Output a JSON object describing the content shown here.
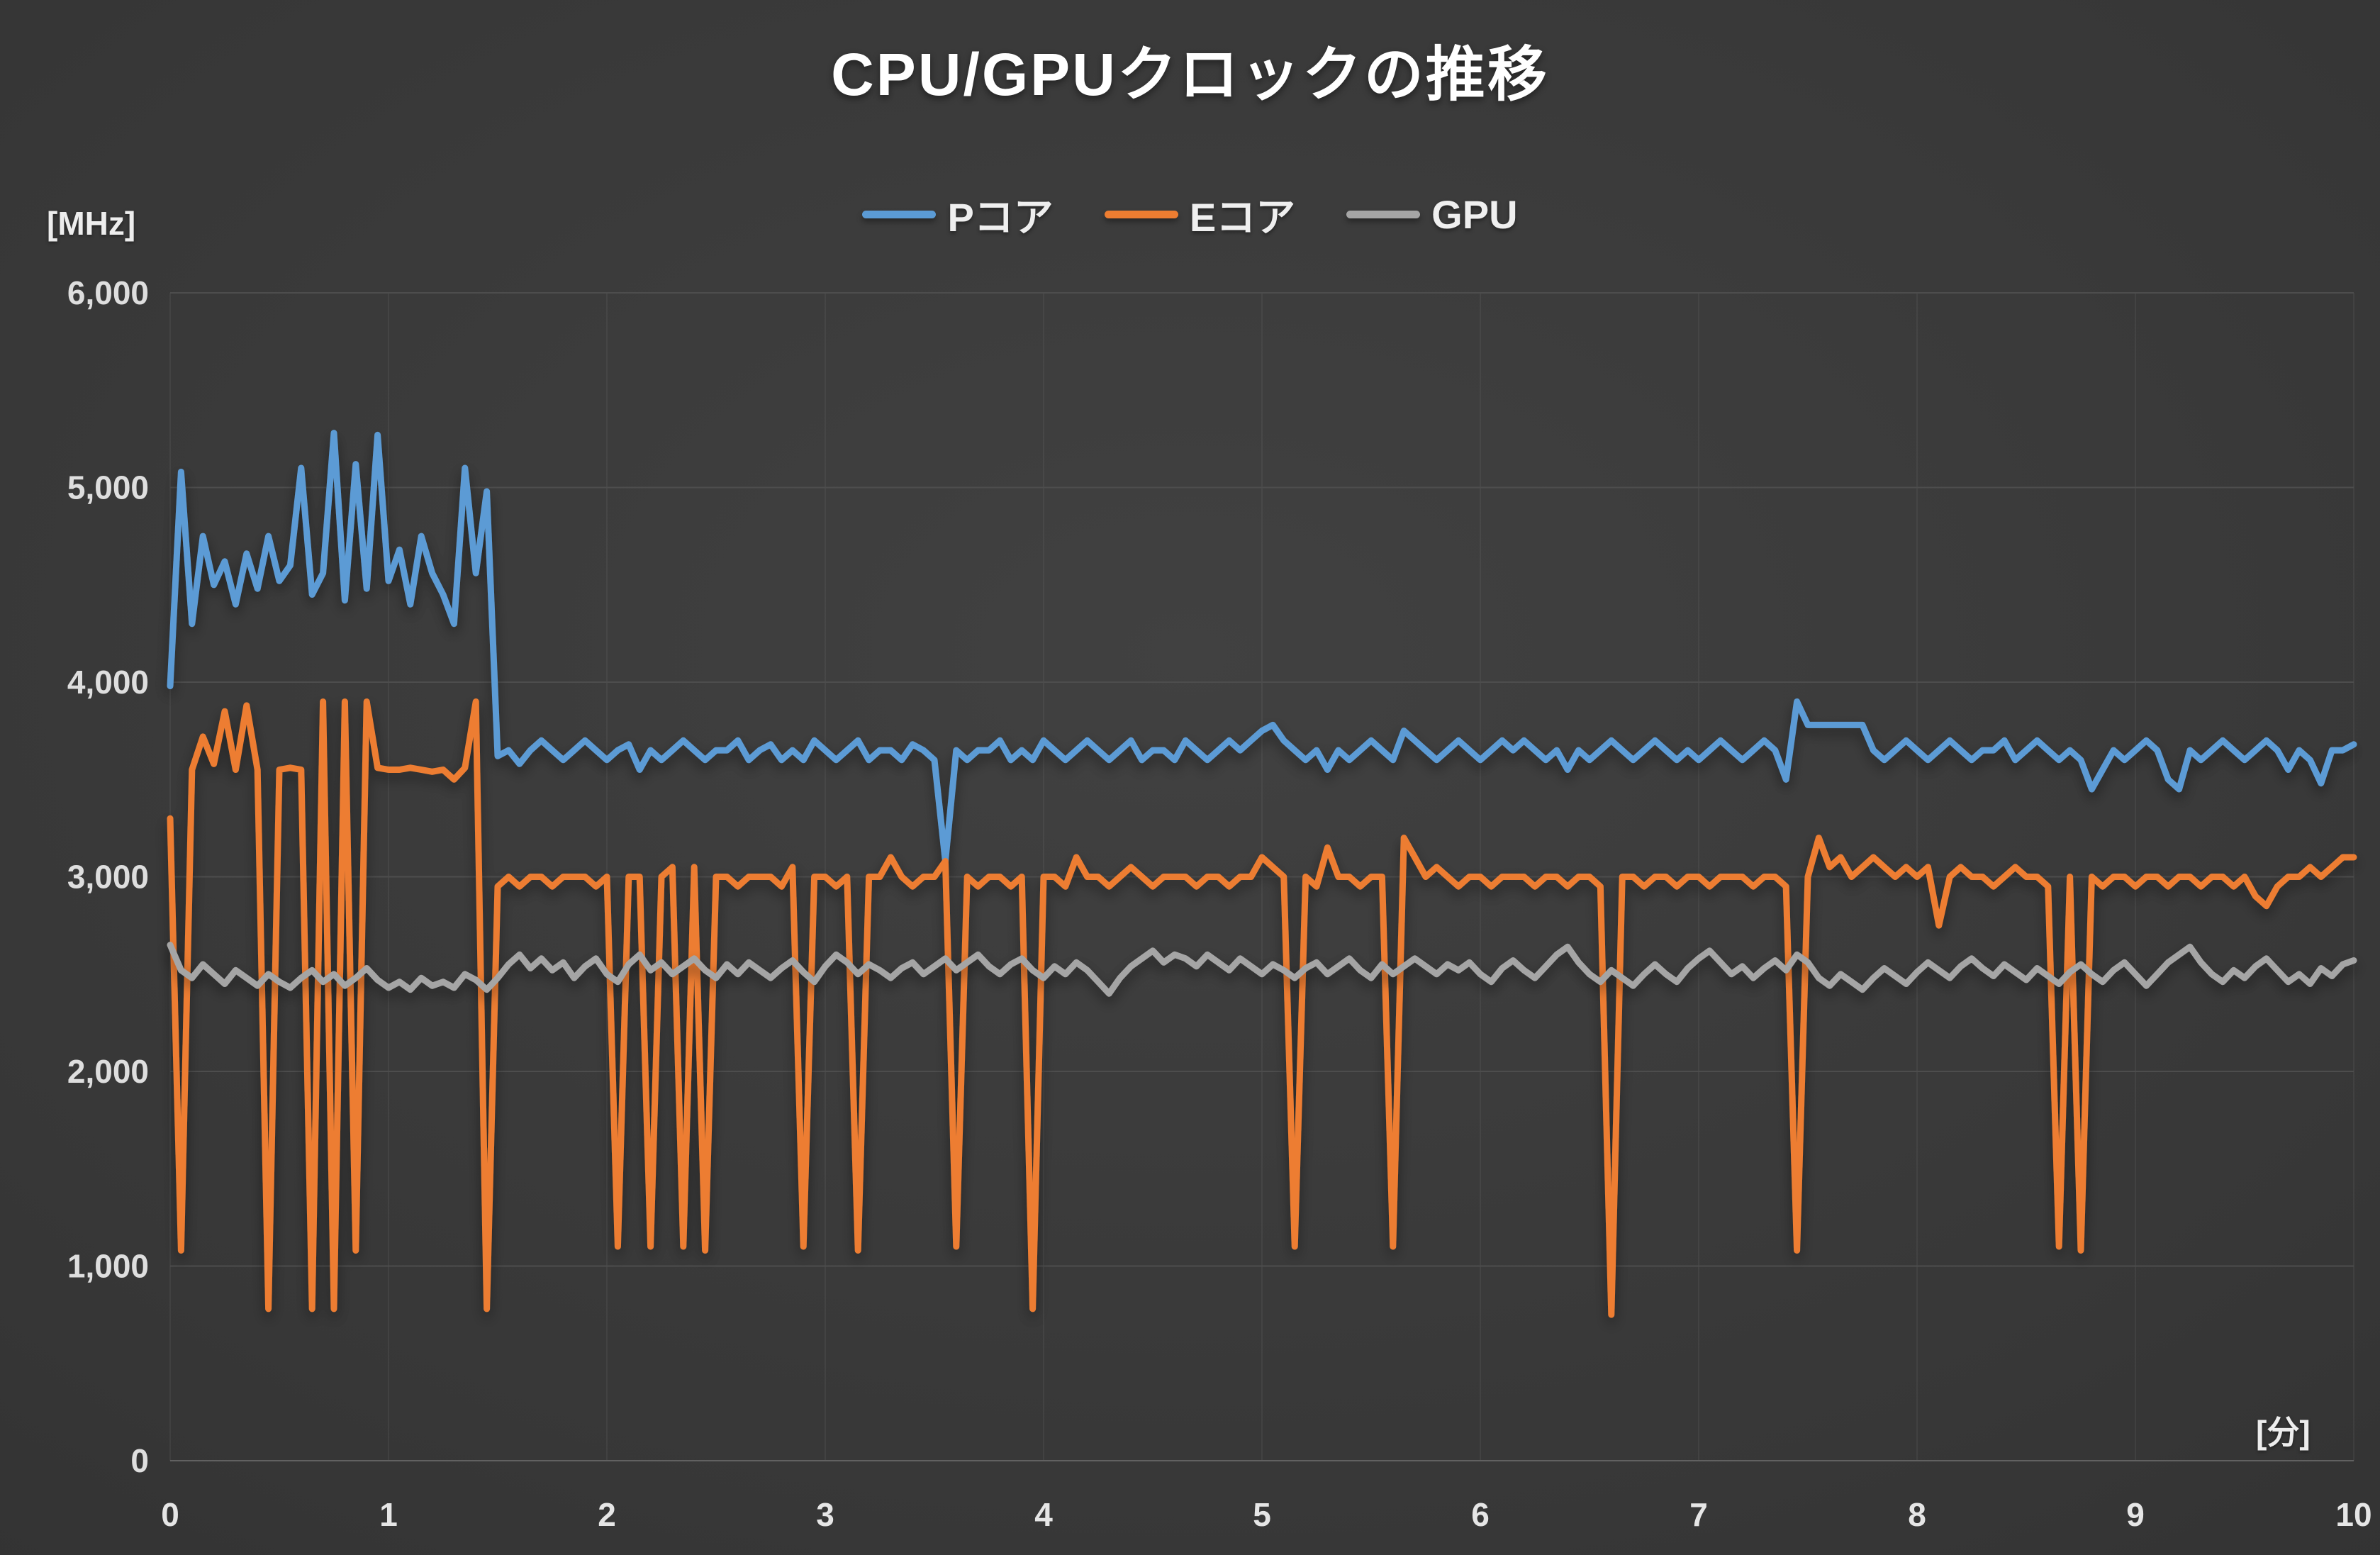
{
  "chart_data": {
    "type": "line",
    "title": "CPU/GPUクロックの推移",
    "xlabel": "[分]",
    "ylabel": "[MHz]",
    "xlim": [
      0,
      10
    ],
    "ylim": [
      0,
      6000
    ],
    "x_ticks": [
      0,
      1,
      2,
      3,
      4,
      5,
      6,
      7,
      8,
      9,
      10
    ],
    "y_ticks": [
      0,
      1000,
      2000,
      3000,
      4000,
      5000,
      6000
    ],
    "grid": true,
    "legend_position": "top",
    "x_start": 0,
    "x_step": 0.05,
    "series": [
      {
        "id": "pcore",
        "name": "Pコア",
        "color": "#5B9BD5",
        "values": [
          3980,
          5080,
          4300,
          4750,
          4500,
          4620,
          4400,
          4660,
          4480,
          4750,
          4520,
          4600,
          5100,
          4450,
          4560,
          5280,
          4420,
          5120,
          4480,
          5270,
          4520,
          4680,
          4400,
          4750,
          4560,
          4450,
          4300,
          5100,
          4560,
          4980,
          3620,
          3650,
          3580,
          3650,
          3700,
          3650,
          3600,
          3650,
          3700,
          3650,
          3600,
          3650,
          3680,
          3550,
          3650,
          3600,
          3650,
          3700,
          3650,
          3600,
          3650,
          3650,
          3700,
          3600,
          3650,
          3680,
          3600,
          3650,
          3600,
          3700,
          3650,
          3600,
          3650,
          3700,
          3600,
          3650,
          3650,
          3600,
          3680,
          3650,
          3600,
          3080,
          3650,
          3600,
          3650,
          3650,
          3700,
          3600,
          3650,
          3600,
          3700,
          3650,
          3600,
          3650,
          3700,
          3650,
          3600,
          3650,
          3700,
          3600,
          3650,
          3650,
          3600,
          3700,
          3650,
          3600,
          3650,
          3700,
          3650,
          3700,
          3750,
          3780,
          3700,
          3650,
          3600,
          3650,
          3550,
          3650,
          3600,
          3650,
          3700,
          3650,
          3600,
          3750,
          3700,
          3650,
          3600,
          3650,
          3700,
          3650,
          3600,
          3650,
          3700,
          3650,
          3700,
          3650,
          3600,
          3650,
          3550,
          3650,
          3600,
          3650,
          3700,
          3650,
          3600,
          3650,
          3700,
          3650,
          3600,
          3650,
          3600,
          3650,
          3700,
          3650,
          3600,
          3650,
          3700,
          3650,
          3500,
          3900,
          3780,
          3780,
          3780,
          3780,
          3780,
          3780,
          3650,
          3600,
          3650,
          3700,
          3650,
          3600,
          3650,
          3700,
          3650,
          3600,
          3650,
          3650,
          3700,
          3600,
          3650,
          3700,
          3650,
          3600,
          3650,
          3600,
          3450,
          3550,
          3650,
          3600,
          3650,
          3700,
          3650,
          3500,
          3450,
          3650,
          3600,
          3650,
          3700,
          3650,
          3600,
          3650,
          3700,
          3650,
          3550,
          3650,
          3600,
          3480,
          3650,
          3650,
          3680
        ]
      },
      {
        "id": "ecore",
        "name": "Eコア",
        "color": "#ED7D31",
        "values": [
          3300,
          1080,
          3550,
          3720,
          3580,
          3850,
          3550,
          3880,
          3550,
          780,
          3550,
          3560,
          3550,
          780,
          3900,
          780,
          3900,
          1080,
          3900,
          3560,
          3550,
          3550,
          3560,
          3550,
          3540,
          3550,
          3500,
          3560,
          3900,
          780,
          2950,
          3000,
          2950,
          3000,
          3000,
          2950,
          3000,
          3000,
          3000,
          2950,
          3000,
          1100,
          3000,
          3000,
          1100,
          3000,
          3050,
          1100,
          3050,
          1080,
          3000,
          3000,
          2950,
          3000,
          3000,
          3000,
          2950,
          3050,
          1100,
          3000,
          3000,
          2950,
          3000,
          1080,
          3000,
          3000,
          3100,
          3000,
          2950,
          3000,
          3000,
          3080,
          1100,
          3000,
          2950,
          3000,
          3000,
          2950,
          3000,
          780,
          3000,
          3000,
          2950,
          3100,
          3000,
          3000,
          2950,
          3000,
          3050,
          3000,
          2950,
          3000,
          3000,
          3000,
          2950,
          3000,
          3000,
          2950,
          3000,
          3000,
          3100,
          3050,
          3000,
          1100,
          3000,
          2950,
          3150,
          3000,
          3000,
          2950,
          3000,
          3000,
          1100,
          3200,
          3100,
          3000,
          3050,
          3000,
          2950,
          3000,
          3000,
          2950,
          3000,
          3000,
          3000,
          2950,
          3000,
          3000,
          2950,
          3000,
          3000,
          2950,
          750,
          3000,
          3000,
          2950,
          3000,
          3000,
          2950,
          3000,
          3000,
          2950,
          3000,
          3000,
          3000,
          2950,
          3000,
          3000,
          2950,
          1080,
          3000,
          3200,
          3050,
          3100,
          3000,
          3050,
          3100,
          3050,
          3000,
          3050,
          3000,
          3050,
          2750,
          3000,
          3050,
          3000,
          3000,
          2950,
          3000,
          3050,
          3000,
          3000,
          2950,
          1100,
          3000,
          1080,
          3000,
          2950,
          3000,
          3000,
          2950,
          3000,
          3000,
          2950,
          3000,
          3000,
          2950,
          3000,
          3000,
          2950,
          3000,
          2900,
          2850,
          2950,
          3000,
          3000,
          3050,
          3000,
          3050,
          3100,
          3100
        ]
      },
      {
        "id": "gpu",
        "name": "GPU",
        "color": "#A5A5A5",
        "values": [
          2650,
          2520,
          2480,
          2550,
          2500,
          2450,
          2520,
          2480,
          2440,
          2500,
          2460,
          2430,
          2480,
          2520,
          2460,
          2500,
          2440,
          2480,
          2530,
          2470,
          2430,
          2460,
          2420,
          2480,
          2440,
          2460,
          2430,
          2500,
          2470,
          2420,
          2480,
          2550,
          2600,
          2530,
          2580,
          2520,
          2560,
          2480,
          2540,
          2580,
          2500,
          2460,
          2550,
          2600,
          2520,
          2560,
          2500,
          2540,
          2580,
          2520,
          2480,
          2550,
          2500,
          2560,
          2520,
          2480,
          2530,
          2570,
          2510,
          2460,
          2540,
          2600,
          2560,
          2500,
          2550,
          2520,
          2480,
          2530,
          2560,
          2500,
          2540,
          2580,
          2520,
          2560,
          2600,
          2540,
          2500,
          2550,
          2580,
          2520,
          2480,
          2540,
          2500,
          2560,
          2520,
          2460,
          2400,
          2480,
          2540,
          2580,
          2620,
          2560,
          2600,
          2580,
          2540,
          2600,
          2560,
          2520,
          2580,
          2540,
          2500,
          2550,
          2520,
          2480,
          2530,
          2560,
          2500,
          2540,
          2580,
          2520,
          2480,
          2550,
          2500,
          2540,
          2580,
          2540,
          2500,
          2550,
          2520,
          2560,
          2500,
          2460,
          2530,
          2570,
          2520,
          2480,
          2540,
          2600,
          2640,
          2560,
          2500,
          2460,
          2520,
          2480,
          2440,
          2500,
          2550,
          2500,
          2460,
          2530,
          2580,
          2620,
          2560,
          2500,
          2540,
          2480,
          2530,
          2570,
          2520,
          2600,
          2560,
          2480,
          2440,
          2500,
          2460,
          2420,
          2480,
          2530,
          2490,
          2450,
          2510,
          2560,
          2520,
          2480,
          2540,
          2580,
          2530,
          2490,
          2550,
          2510,
          2470,
          2530,
          2490,
          2450,
          2510,
          2550,
          2500,
          2460,
          2520,
          2560,
          2500,
          2440,
          2500,
          2560,
          2600,
          2640,
          2560,
          2500,
          2460,
          2520,
          2480,
          2540,
          2580,
          2520,
          2460,
          2500,
          2450,
          2530,
          2490,
          2550,
          2570
        ]
      }
    ]
  },
  "colors": {
    "background_center": "#414141",
    "background_edge": "#282828",
    "gridline": "#4d4d4d",
    "title_text": "#ffffff",
    "tick_text": "#dedede"
  }
}
